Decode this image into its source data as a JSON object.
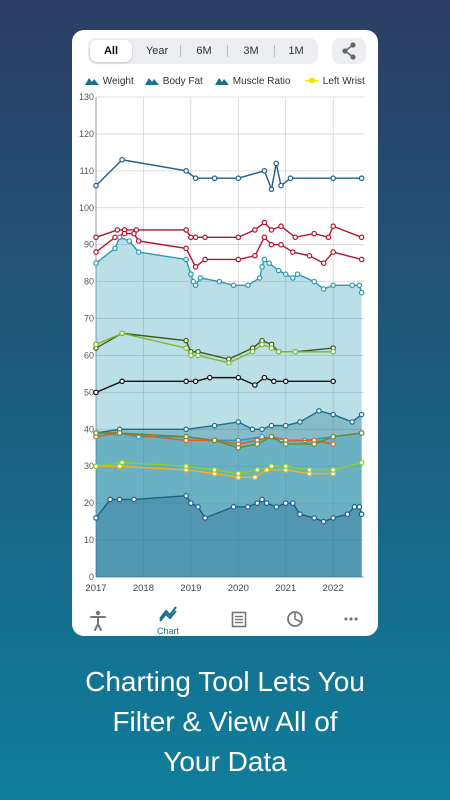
{
  "range_tabs": [
    "All",
    "Year",
    "6M",
    "3M",
    "1M"
  ],
  "active_range": "All",
  "share_icon": "share-icon",
  "legend": [
    {
      "label": "Weight",
      "color": "#1a6f8c",
      "icon": "mountain-icon"
    },
    {
      "label": "Body Fat",
      "color": "#1a6f8c",
      "icon": "mountain-icon"
    },
    {
      "label": "Muscle Ratio",
      "color": "#1a6f8c",
      "icon": "mountain-icon"
    },
    {
      "label": "Left Wrist",
      "color": "#f2e21a",
      "icon": "line-icon"
    }
  ],
  "chart_data": {
    "type": "line",
    "x_ticks": [
      "2017",
      "2018",
      "2019",
      "2020",
      "2021",
      "2022"
    ],
    "y_ticks": [
      "0",
      "10",
      "20",
      "30",
      "40",
      "50",
      "60",
      "70",
      "80",
      "90",
      "100",
      "110",
      "120",
      "130"
    ],
    "ylim": [
      0,
      130
    ],
    "xlim": [
      2017,
      2022.65
    ],
    "grid": true,
    "series": [
      {
        "color": "#1f5f8b",
        "area": false,
        "points": [
          [
            2017,
            106
          ],
          [
            2017.55,
            113
          ],
          [
            2018.9,
            110
          ],
          [
            2019.1,
            108
          ],
          [
            2019.5,
            108
          ],
          [
            2020,
            108
          ],
          [
            2020.55,
            110
          ],
          [
            2020.7,
            105
          ],
          [
            2020.8,
            112
          ],
          [
            2020.9,
            106
          ],
          [
            2021.1,
            108
          ],
          [
            2022,
            108
          ],
          [
            2022.6,
            108
          ]
        ]
      },
      {
        "color": "#b5132e",
        "area": false,
        "points": [
          [
            2017,
            92
          ],
          [
            2017.45,
            94
          ],
          [
            2017.6,
            94
          ],
          [
            2017.85,
            94
          ],
          [
            2018.9,
            94
          ],
          [
            2019,
            92
          ],
          [
            2019.1,
            92
          ],
          [
            2019.3,
            92
          ],
          [
            2020,
            92
          ],
          [
            2020.35,
            94
          ],
          [
            2020.55,
            96
          ],
          [
            2020.7,
            94
          ],
          [
            2020.9,
            95
          ],
          [
            2021.2,
            92
          ],
          [
            2021.6,
            93
          ],
          [
            2021.9,
            92
          ],
          [
            2022,
            95
          ],
          [
            2022.6,
            92
          ]
        ]
      },
      {
        "color": "#b5132e",
        "area": false,
        "points": [
          [
            2017,
            88
          ],
          [
            2017.4,
            92
          ],
          [
            2017.6,
            93
          ],
          [
            2017.8,
            93
          ],
          [
            2017.9,
            91
          ],
          [
            2018.9,
            89
          ],
          [
            2019.1,
            84
          ],
          [
            2019.3,
            86
          ],
          [
            2020,
            86
          ],
          [
            2020.35,
            87
          ],
          [
            2020.55,
            92
          ],
          [
            2020.7,
            90
          ],
          [
            2020.9,
            90
          ],
          [
            2021.15,
            88
          ],
          [
            2021.5,
            87
          ],
          [
            2021.8,
            85
          ],
          [
            2022,
            88
          ],
          [
            2022.6,
            86
          ]
        ]
      },
      {
        "color": "#2a9ab5",
        "area": true,
        "points": [
          [
            2017,
            85
          ],
          [
            2017.4,
            89
          ],
          [
            2017.5,
            92
          ],
          [
            2017.7,
            91
          ],
          [
            2017.9,
            88
          ],
          [
            2018.9,
            86
          ],
          [
            2019,
            82
          ],
          [
            2019.05,
            80
          ],
          [
            2019.1,
            79
          ],
          [
            2019.2,
            81
          ],
          [
            2019.6,
            80
          ],
          [
            2019.9,
            79
          ],
          [
            2020.2,
            79
          ],
          [
            2020.45,
            81
          ],
          [
            2020.5,
            84
          ],
          [
            2020.55,
            86
          ],
          [
            2020.65,
            85
          ],
          [
            2020.85,
            83
          ],
          [
            2021,
            82
          ],
          [
            2021.15,
            81
          ],
          [
            2021.25,
            82
          ],
          [
            2021.6,
            80
          ],
          [
            2021.8,
            78
          ],
          [
            2022,
            79
          ],
          [
            2022.4,
            79
          ],
          [
            2022.55,
            79
          ],
          [
            2022.6,
            77
          ]
        ]
      },
      {
        "color": "#3a5c10",
        "area": false,
        "points": [
          [
            2017,
            62
          ],
          [
            2017.55,
            66
          ],
          [
            2018.9,
            64
          ],
          [
            2019,
            61
          ],
          [
            2019.15,
            61
          ],
          [
            2019.8,
            59
          ],
          [
            2020.3,
            62
          ],
          [
            2020.5,
            64
          ],
          [
            2020.7,
            63
          ],
          [
            2020.85,
            61
          ],
          [
            2021.2,
            61
          ],
          [
            2022,
            62
          ]
        ]
      },
      {
        "color": "#7dbb2a",
        "area": false,
        "points": [
          [
            2017,
            63
          ],
          [
            2017.55,
            66
          ],
          [
            2018.9,
            62
          ],
          [
            2019,
            60
          ],
          [
            2019.15,
            60
          ],
          [
            2019.8,
            58
          ],
          [
            2020.3,
            61
          ],
          [
            2020.5,
            63
          ],
          [
            2020.7,
            62
          ],
          [
            2020.85,
            61
          ],
          [
            2021.2,
            61
          ],
          [
            2022,
            61
          ]
        ]
      },
      {
        "color": "#111111",
        "area": false,
        "points": [
          [
            2017,
            50
          ],
          [
            2017.55,
            53
          ],
          [
            2018.9,
            53
          ],
          [
            2019.1,
            53
          ],
          [
            2019.4,
            54
          ],
          [
            2020,
            54
          ],
          [
            2020.35,
            52
          ],
          [
            2020.55,
            54
          ],
          [
            2020.75,
            53
          ],
          [
            2021,
            53
          ],
          [
            2022,
            53
          ]
        ]
      },
      {
        "color": "#1a6f8c",
        "area": true,
        "points": [
          [
            2017,
            39
          ],
          [
            2017.5,
            40
          ],
          [
            2018.9,
            40
          ],
          [
            2019.5,
            41
          ],
          [
            2020,
            42
          ],
          [
            2020.3,
            40
          ],
          [
            2020.5,
            40
          ],
          [
            2020.7,
            41
          ],
          [
            2021,
            41
          ],
          [
            2021.3,
            42
          ],
          [
            2021.7,
            45
          ],
          [
            2022,
            44
          ],
          [
            2022.4,
            42
          ],
          [
            2022.6,
            44
          ]
        ]
      },
      {
        "color": "#2a9ab5",
        "area": true,
        "points": [
          [
            2017,
            39
          ],
          [
            2017.45,
            39
          ],
          [
            2017.9,
            38
          ],
          [
            2018.9,
            38
          ],
          [
            2019.5,
            37
          ],
          [
            2020,
            37
          ],
          [
            2020.5,
            38
          ],
          [
            2020.9,
            37
          ],
          [
            2021.4,
            37
          ],
          [
            2022,
            38
          ],
          [
            2022.6,
            39
          ]
        ]
      },
      {
        "color": "#e85a20",
        "area": false,
        "points": [
          [
            2017,
            38
          ],
          [
            2017.5,
            39
          ],
          [
            2018.9,
            37
          ],
          [
            2019.5,
            37
          ],
          [
            2020,
            36
          ],
          [
            2020.4,
            37
          ],
          [
            2020.7,
            38
          ],
          [
            2021,
            37
          ],
          [
            2021.6,
            37
          ],
          [
            2022,
            36
          ]
        ]
      },
      {
        "color": "#6b8a2a",
        "area": false,
        "points": [
          [
            2017,
            39
          ],
          [
            2017.5,
            39
          ],
          [
            2018.9,
            38
          ],
          [
            2019.5,
            37
          ],
          [
            2020,
            35
          ],
          [
            2020.4,
            36
          ],
          [
            2020.7,
            38
          ],
          [
            2021,
            36
          ],
          [
            2021.6,
            36
          ],
          [
            2022,
            38
          ],
          [
            2022.6,
            39
          ]
        ]
      },
      {
        "color": "#f2b21a",
        "area": false,
        "points": [
          [
            2017,
            30
          ],
          [
            2017.5,
            30
          ],
          [
            2018.9,
            29
          ],
          [
            2019.5,
            28
          ],
          [
            2020,
            27
          ],
          [
            2020.35,
            27
          ],
          [
            2020.6,
            29
          ],
          [
            2021,
            29
          ],
          [
            2021.5,
            28
          ],
          [
            2022,
            28
          ]
        ]
      },
      {
        "color": "#8bd12a",
        "area": false,
        "points": [
          [
            2017,
            30
          ],
          [
            2017.55,
            31
          ],
          [
            2018.9,
            30
          ],
          [
            2019.5,
            29
          ],
          [
            2020,
            28
          ],
          [
            2020.4,
            29
          ],
          [
            2020.7,
            30
          ],
          [
            2021,
            30
          ],
          [
            2021.5,
            29
          ],
          [
            2022,
            29
          ],
          [
            2022.6,
            31
          ]
        ]
      },
      {
        "color": "#1f5f8b",
        "area": true,
        "points": [
          [
            2017,
            16
          ],
          [
            2017.3,
            21
          ],
          [
            2017.5,
            21
          ],
          [
            2017.8,
            21
          ],
          [
            2018.9,
            22
          ],
          [
            2019,
            20
          ],
          [
            2019.15,
            19
          ],
          [
            2019.3,
            16
          ],
          [
            2019.9,
            19
          ],
          [
            2020.2,
            19
          ],
          [
            2020.4,
            20
          ],
          [
            2020.5,
            21
          ],
          [
            2020.6,
            20
          ],
          [
            2020.8,
            19
          ],
          [
            2021,
            20
          ],
          [
            2021.15,
            20
          ],
          [
            2021.3,
            17
          ],
          [
            2021.6,
            16
          ],
          [
            2021.8,
            15
          ],
          [
            2022,
            16
          ],
          [
            2022.3,
            17
          ],
          [
            2022.45,
            19
          ],
          [
            2022.55,
            19
          ],
          [
            2022.6,
            17
          ]
        ]
      }
    ]
  },
  "nav": [
    {
      "icon": "person-icon",
      "label": ""
    },
    {
      "icon": "chart-icon",
      "label": "Chart"
    },
    {
      "icon": "list-icon",
      "label": ""
    },
    {
      "icon": "pie-icon",
      "label": ""
    },
    {
      "icon": "more-icon",
      "label": ""
    }
  ],
  "tagline": [
    "Charting Tool Lets You",
    "Filter & View All of",
    "Your Data"
  ]
}
